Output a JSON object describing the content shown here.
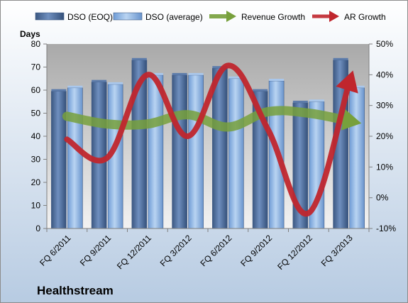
{
  "chart_data": {
    "type": "bar",
    "title": "Healthstream",
    "ylabel": "Days",
    "ylim": [
      0,
      80
    ],
    "yticks": [
      0,
      10,
      20,
      30,
      40,
      50,
      60,
      70,
      80
    ],
    "y2lim": [
      -10,
      50
    ],
    "y2ticks": [
      "-10%",
      "0%",
      "10%",
      "20%",
      "30%",
      "40%",
      "50%"
    ],
    "y2tick_values": [
      -10,
      0,
      10,
      20,
      30,
      40,
      50
    ],
    "categories": [
      "FQ 6/2011",
      "FQ 9/2011",
      "FQ 12/2011",
      "FQ 3/2012",
      "FQ 6/2012",
      "FQ 9/2012",
      "FQ 12/2012",
      "FQ 3/2013"
    ],
    "series": [
      {
        "name": "DSO (EOQ)",
        "kind": "bar",
        "axis": "left",
        "color": "#4f6d9b",
        "values": [
          59.5,
          63.5,
          73,
          66.5,
          69.5,
          59.5,
          54.5,
          73
        ]
      },
      {
        "name": "DSO (average)",
        "kind": "bar",
        "axis": "left",
        "color": "#8fb4e3",
        "values": [
          61,
          62.5,
          66.5,
          66.5,
          65,
          64,
          55,
          61
        ]
      },
      {
        "name": "Revenue Growth",
        "kind": "line",
        "axis": "right",
        "color": "#77a03c",
        "values": [
          26.5,
          24,
          24,
          27,
          23,
          28,
          27.5,
          25
        ]
      },
      {
        "name": "AR Growth",
        "kind": "line",
        "axis": "right",
        "color": "#c0262d",
        "values": [
          19,
          13,
          40,
          20,
          43,
          22,
          -5,
          37
        ]
      }
    ],
    "grid": false,
    "legend_position": "top"
  }
}
